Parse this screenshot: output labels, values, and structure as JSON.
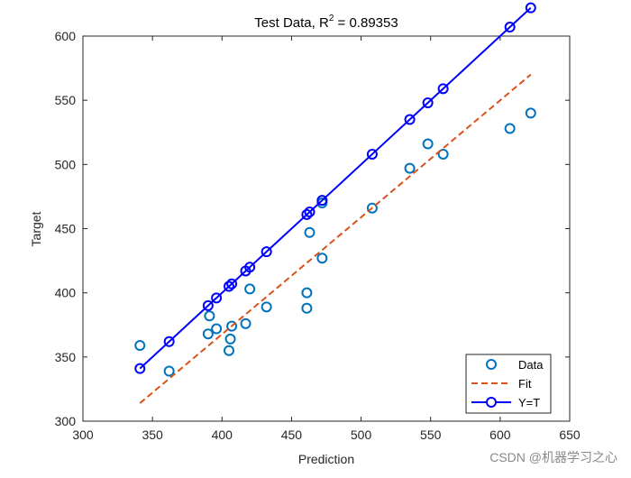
{
  "chart_data": {
    "type": "scatter",
    "title": [
      "Test Data, R",
      "2",
      " = 0.89353"
    ],
    "x_label": "Prediction",
    "y_label": "Target",
    "xlim": [
      300,
      650
    ],
    "xticks": [
      300,
      350,
      400,
      450,
      500,
      550,
      600,
      650
    ],
    "ylim": [
      300,
      600
    ],
    "yticks": [
      300,
      350,
      400,
      450,
      500,
      550,
      600
    ],
    "legend": "lower right",
    "series": [
      {
        "name": "Data",
        "color": "#0072BD",
        "style": "markers",
        "x": [
          341,
          362,
          390,
          391,
          396,
          405,
          406,
          407,
          417,
          420,
          432,
          461,
          461,
          463,
          472,
          472,
          508,
          535,
          548,
          559,
          607,
          622
        ],
        "values": [
          359,
          339,
          368,
          382,
          372,
          355,
          364,
          374,
          376,
          403,
          389,
          400,
          388,
          447,
          470,
          427,
          466,
          497,
          516,
          508,
          528,
          540
        ]
      },
      {
        "name": "Fit",
        "color": "#D95319",
        "style": "dashed",
        "x": [
          341,
          622
        ],
        "values": [
          314,
          570
        ]
      },
      {
        "name": "Y=T",
        "color": "#0000FF",
        "style": "line-markers",
        "x": [
          341,
          362,
          390,
          396,
          405,
          407,
          417,
          420,
          432,
          461,
          463,
          472,
          508,
          535,
          548,
          559,
          607,
          622
        ],
        "values": [
          341,
          362,
          390,
          396,
          405,
          407,
          417,
          420,
          432,
          461,
          463,
          472,
          508,
          535,
          548,
          559,
          607,
          622
        ]
      }
    ],
    "watermark": "CSDN @机器学习之心"
  }
}
